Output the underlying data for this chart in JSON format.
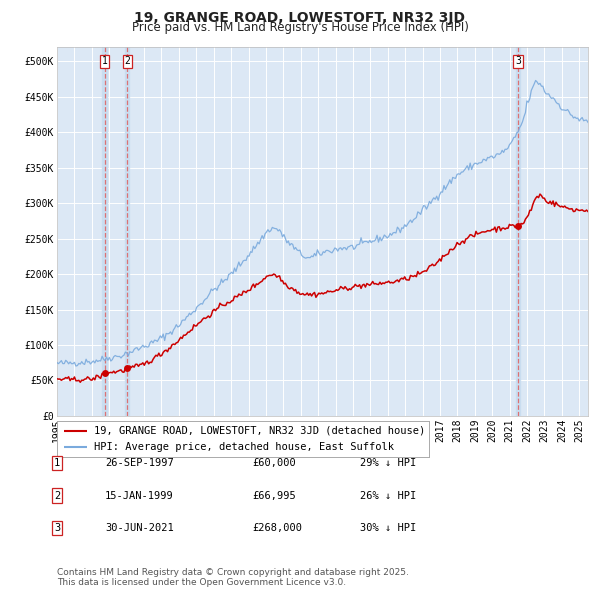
{
  "title": "19, GRANGE ROAD, LOWESTOFT, NR32 3JD",
  "subtitle": "Price paid vs. HM Land Registry's House Price Index (HPI)",
  "legend_label_red": "19, GRANGE ROAD, LOWESTOFT, NR32 3JD (detached house)",
  "legend_label_blue": "HPI: Average price, detached house, East Suffolk",
  "footnote": "Contains HM Land Registry data © Crown copyright and database right 2025.\nThis data is licensed under the Open Government Licence v3.0.",
  "transactions": [
    {
      "num": 1,
      "date": "26-SEP-1997",
      "price": 60000,
      "hpi_diff": "29% ↓ HPI",
      "x_year": 1997.73
    },
    {
      "num": 2,
      "date": "15-JAN-1999",
      "price": 66995,
      "hpi_diff": "26% ↓ HPI",
      "x_year": 1999.04
    },
    {
      "num": 3,
      "date": "30-JUN-2021",
      "price": 268000,
      "hpi_diff": "30% ↓ HPI",
      "x_year": 2021.49
    }
  ],
  "ylim": [
    0,
    520000
  ],
  "xlim_start": 1995.0,
  "xlim_end": 2025.5,
  "background_color": "#ffffff",
  "chart_bg_color": "#dce8f5",
  "grid_color": "#ffffff",
  "red_line_color": "#cc0000",
  "blue_line_color": "#7aaadd",
  "vline_color": "#dd6666",
  "vline_shade_color": "#c8ddf0",
  "marker_color": "#cc0000",
  "title_fontsize": 10,
  "subtitle_fontsize": 8.5,
  "tick_fontsize": 7,
  "legend_fontsize": 7.5,
  "footnote_fontsize": 6.5,
  "table_fontsize": 7.5
}
